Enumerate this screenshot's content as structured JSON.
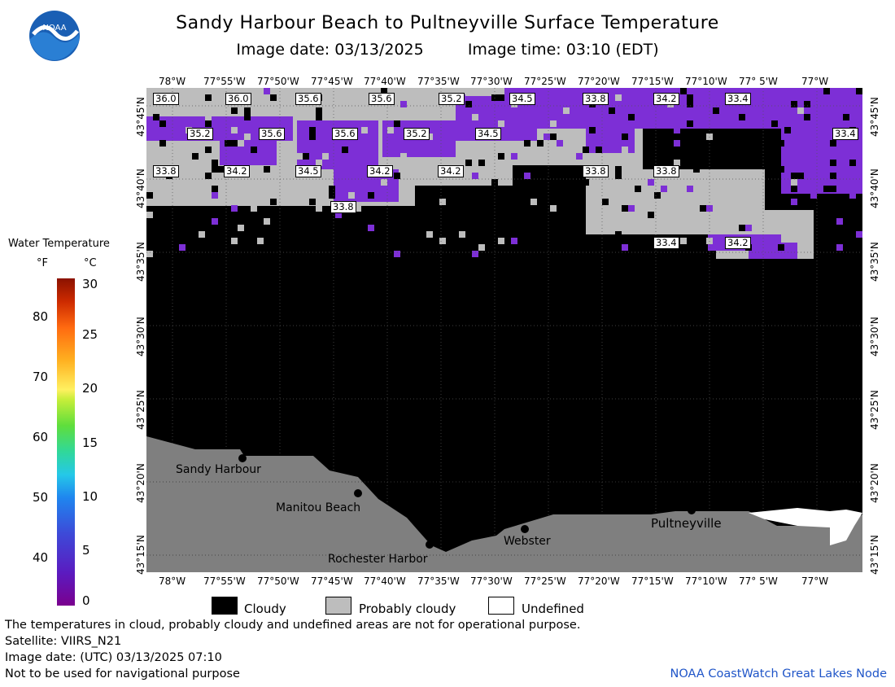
{
  "header": {
    "title": "Sandy Harbour Beach to Pultneyville Surface Temperature",
    "image_date": "Image date: 03/13/2025",
    "image_time": "Image time: 03:10 (EDT)"
  },
  "logo": {
    "text": "NOAA"
  },
  "axes": {
    "lon_ticks": [
      "78°W",
      "77°55'W",
      "77°50'W",
      "77°45'W",
      "77°40'W",
      "77°35'W",
      "77°30'W",
      "77°25'W",
      "77°20'W",
      "77°15'W",
      "77°10'W",
      "77° 5'W",
      "77°W"
    ],
    "lat_ticks": [
      "43°45'N",
      "43°40'N",
      "43°35'N",
      "43°30'N",
      "43°25'N",
      "43°20'N",
      "43°15'N"
    ]
  },
  "isotherm_labels": [
    "36.0",
    "36.0",
    "35.6",
    "35.6",
    "35.2",
    "34.5",
    "33.8",
    "34.2",
    "33.4",
    "35.2",
    "35.6",
    "35.6",
    "35.2",
    "34.5",
    "33.4",
    "33.8",
    "34.2",
    "34.5",
    "34.2",
    "34.2",
    "33.8",
    "33.8",
    "33.8",
    "33.4",
    "34.2"
  ],
  "places": [
    "Sandy Harbour",
    "Manitou Beach",
    "Rochester Harbor",
    "Webster",
    "Pultneyville"
  ],
  "legend": {
    "title": "Water Temperature",
    "unit_f": "°F",
    "unit_c": "°C",
    "f_ticks": [
      "80",
      "70",
      "60",
      "50",
      "40"
    ],
    "c_ticks": [
      "30",
      "25",
      "20",
      "15",
      "10",
      "5",
      "0"
    ]
  },
  "key": {
    "cloudy": "Cloudy",
    "probably_cloudy": "Probably cloudy",
    "undefined": "Undefined"
  },
  "colors": {
    "cloudy": "#000000",
    "probably_cloudy": "#c0c0c0",
    "undefined": "#ffffff",
    "land": "#7f7f7f",
    "water_cold": "#7d2fd6"
  },
  "footer": {
    "note": "The temperatures in cloud, probably cloudy and undefined areas are not for operational purpose.",
    "satellite": "Satellite: VIIRS_N21",
    "utc_date": "Image date: (UTC) 03/13/2025  07:10",
    "nav": "Not to be used for navigational purpose",
    "credit": "NOAA CoastWatch Great Lakes Node"
  }
}
